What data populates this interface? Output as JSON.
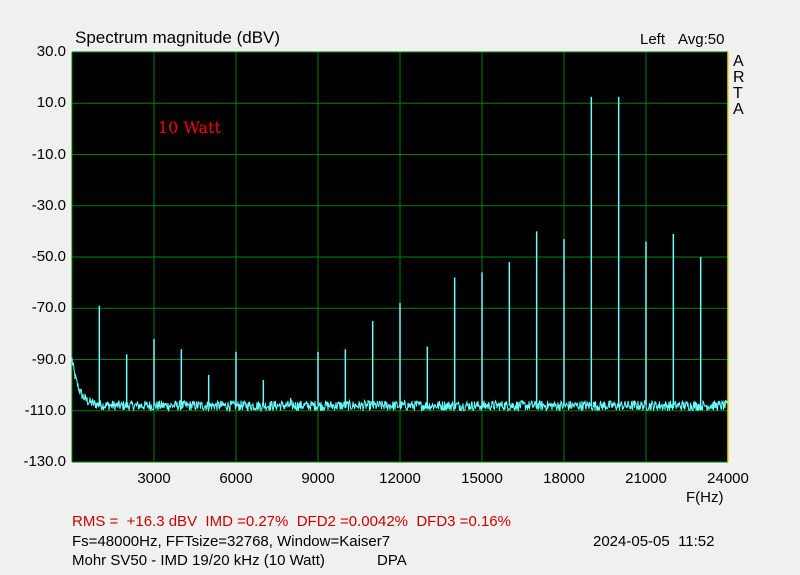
{
  "header": {
    "title": "Spectrum magnitude (dBV)",
    "channel": "Left",
    "avg": "Avg:50",
    "logo": [
      "A",
      "R",
      "T",
      "A"
    ]
  },
  "annotation": "10 Watt",
  "footer": {
    "measurements": "RMS =  +16.3 dBV  IMD =0.27%  DFD2 =0.0042%  DFD3 =0.16%",
    "settings": "Fs=48000Hz, FFTsize=32768, Window=Kaiser7",
    "timestamp": "2024-05-05  11:52",
    "description": "Mohr SV50 - IMD 19/20 kHz (10 Watt)",
    "tag": "DPA"
  },
  "colors": {
    "background": "#000000",
    "grid": "#008000",
    "trace": "#66ffff",
    "annotation": "#ff0000",
    "measurements": "#cc0000",
    "right_border": "#e0e000"
  },
  "chart_data": {
    "type": "line",
    "title": "Spectrum magnitude (dBV)",
    "xlabel": "F(Hz)",
    "ylabel": "",
    "xlim": [
      0,
      24000
    ],
    "ylim": [
      -130,
      30
    ],
    "grid": true,
    "x_ticks": [
      "3000",
      "6000",
      "9000",
      "12000",
      "15000",
      "18000",
      "21000",
      "24000"
    ],
    "y_ticks": [
      "30.0",
      "10.0",
      "-10.0",
      "-30.0",
      "-50.0",
      "-70.0",
      "-90.0",
      "-110.0",
      "-130.0"
    ],
    "noise_floor_db": -108,
    "peaks": [
      {
        "f": 1000,
        "db": -69
      },
      {
        "f": 2000,
        "db": -88
      },
      {
        "f": 3000,
        "db": -82
      },
      {
        "f": 4000,
        "db": -86
      },
      {
        "f": 5000,
        "db": -96
      },
      {
        "f": 6000,
        "db": -87
      },
      {
        "f": 7000,
        "db": -98
      },
      {
        "f": 8000,
        "db": -105
      },
      {
        "f": 9000,
        "db": -87
      },
      {
        "f": 10000,
        "db": -86
      },
      {
        "f": 11000,
        "db": -75
      },
      {
        "f": 12000,
        "db": -68
      },
      {
        "f": 13000,
        "db": -85
      },
      {
        "f": 14000,
        "db": -58
      },
      {
        "f": 15000,
        "db": -56
      },
      {
        "f": 16000,
        "db": -52
      },
      {
        "f": 17000,
        "db": -40
      },
      {
        "f": 18000,
        "db": -43
      },
      {
        "f": 19000,
        "db": 12.5
      },
      {
        "f": 20000,
        "db": 12.5
      },
      {
        "f": 21000,
        "db": -44
      },
      {
        "f": 22000,
        "db": -41
      },
      {
        "f": 23000,
        "db": -50
      }
    ]
  }
}
